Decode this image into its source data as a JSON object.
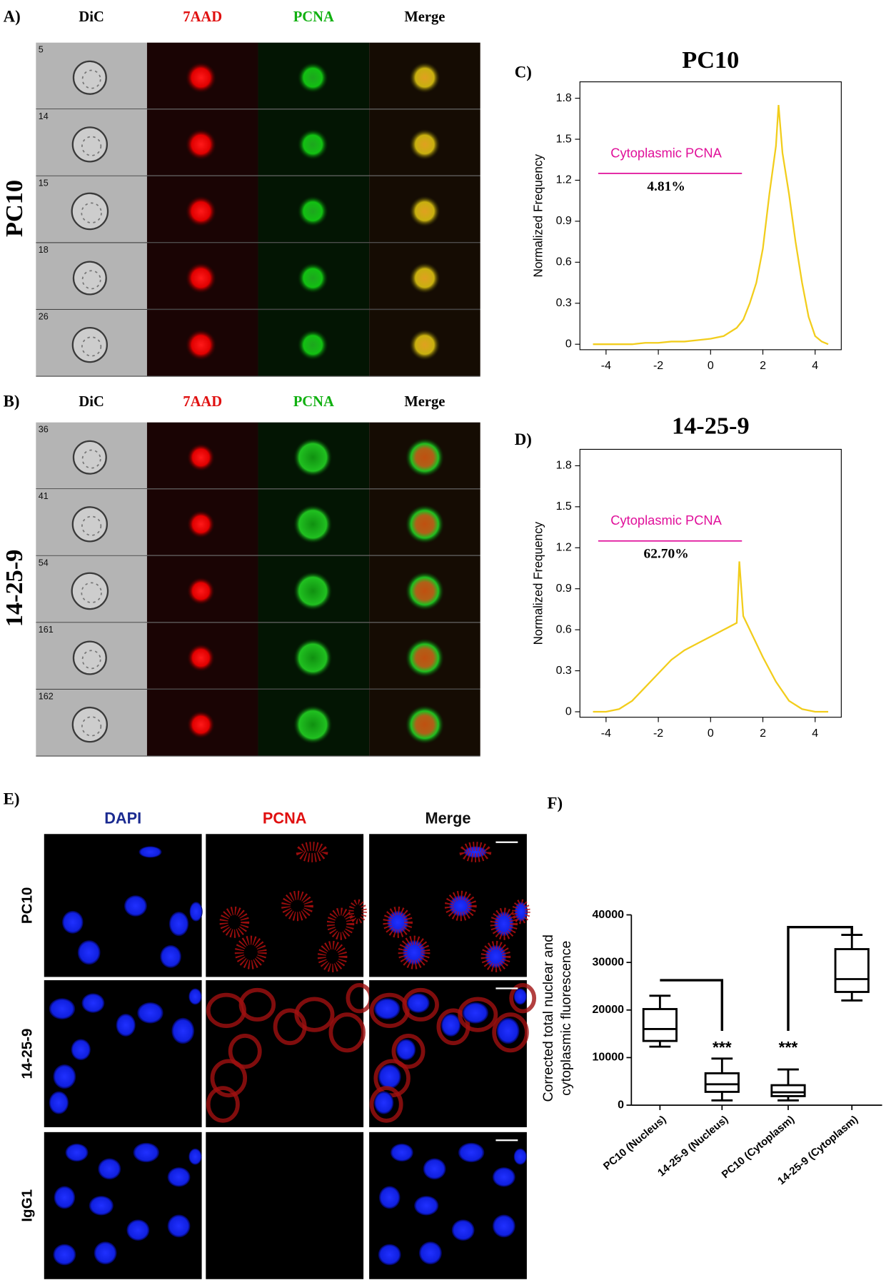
{
  "panels": {
    "A": {
      "label": "A)",
      "columns": [
        "DiC",
        "7AAD",
        "PCNA",
        "Merge"
      ],
      "row_title": "PC10",
      "cell_ids": [
        "5",
        "14",
        "15",
        "18",
        "26"
      ]
    },
    "B": {
      "label": "B)",
      "columns": [
        "DiC",
        "7AAD",
        "PCNA",
        "Merge"
      ],
      "row_title": "14-25-9",
      "cell_ids": [
        "36",
        "41",
        "54",
        "161",
        "162"
      ]
    },
    "E": {
      "label": "E)",
      "columns": [
        "DAPI",
        "PCNA",
        "Merge"
      ],
      "rows": [
        "PC10",
        "14-25-9",
        "IgG1"
      ]
    }
  },
  "chart_data": [
    {
      "type": "line",
      "label": "C)",
      "title": "PC10",
      "ylabel": "Normalized Frequency",
      "annotation": "Cytoplasmic PCNA",
      "annotation_color": "#e0109a",
      "percent": "4.81%",
      "x": [
        -4.5,
        -4,
        -3.5,
        -3,
        -2.5,
        -2,
        -1.5,
        -1,
        -0.5,
        0,
        0.5,
        1,
        1.25,
        1.5,
        1.75,
        2,
        2.25,
        2.5,
        2.6,
        2.75,
        3,
        3.25,
        3.5,
        3.75,
        4,
        4.25,
        4.5
      ],
      "values": [
        0,
        0,
        0,
        0,
        0.01,
        0.01,
        0.02,
        0.02,
        0.03,
        0.04,
        0.06,
        0.12,
        0.18,
        0.3,
        0.45,
        0.7,
        1.1,
        1.45,
        1.75,
        1.4,
        1.1,
        0.75,
        0.45,
        0.2,
        0.06,
        0.02,
        0
      ],
      "color": "#f2cd1c",
      "xlim": [
        -5,
        5
      ],
      "ylim": [
        -0.04,
        1.92
      ],
      "xticks": [
        -4,
        -2,
        0,
        2,
        4
      ],
      "yticks": [
        0,
        0.3,
        0.6,
        0.9,
        1.2,
        1.5,
        1.8
      ]
    },
    {
      "type": "line",
      "label": "D)",
      "title": "14-25-9",
      "ylabel": "Normalized Frequency",
      "annotation": "Cytoplasmic PCNA",
      "annotation_color": "#e0109a",
      "percent": "62.70%",
      "x": [
        -4.5,
        -4,
        -3.5,
        -3,
        -2.5,
        -2,
        -1.5,
        -1,
        -0.5,
        0,
        0.5,
        1,
        1.1,
        1.25,
        1.5,
        2,
        2.5,
        3,
        3.5,
        4,
        4.5
      ],
      "values": [
        0,
        0,
        0.02,
        0.08,
        0.18,
        0.28,
        0.38,
        0.45,
        0.5,
        0.55,
        0.6,
        0.65,
        1.1,
        0.7,
        0.6,
        0.4,
        0.22,
        0.08,
        0.02,
        0,
        0
      ],
      "color": "#f2cd1c",
      "xlim": [
        -5,
        5
      ],
      "ylim": [
        -0.04,
        1.92
      ],
      "xticks": [
        -4,
        -2,
        0,
        2,
        4
      ],
      "yticks": [
        0,
        0.3,
        0.6,
        0.9,
        1.2,
        1.5,
        1.8
      ]
    },
    {
      "type": "box",
      "label": "F)",
      "ylabel": [
        "Corrected total nuclear and",
        "cytoplasmic fluorescence"
      ],
      "categories": [
        "PC10 (Nucleus)",
        "14-25-9 (Nucleus)",
        "PC10 (Cytoplasm)",
        "14-25-9 (Cytoplasm)"
      ],
      "boxes": [
        {
          "min": 12300,
          "q1": 13500,
          "median": 16000,
          "q3": 20200,
          "max": 23000
        },
        {
          "min": 1000,
          "q1": 2800,
          "median": 4400,
          "q3": 6700,
          "max": 9800
        },
        {
          "min": 1000,
          "q1": 1900,
          "median": 2700,
          "q3": 4200,
          "max": 7500
        },
        {
          "min": 22000,
          "q1": 23800,
          "median": 26500,
          "q3": 32800,
          "max": 35800
        }
      ],
      "significance": [
        null,
        "***",
        "***",
        null
      ],
      "ylim": [
        0,
        40000
      ],
      "yticks": [
        0,
        10000,
        20000,
        30000,
        40000
      ]
    }
  ]
}
